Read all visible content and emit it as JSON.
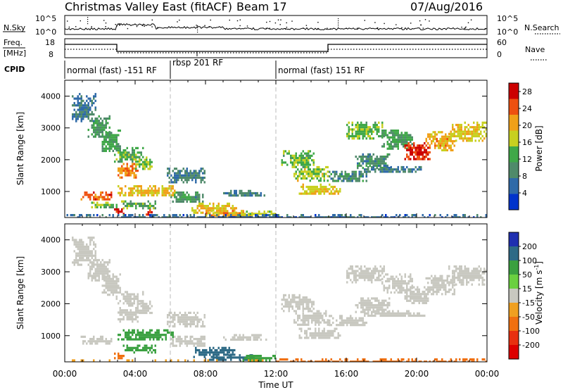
{
  "header": {
    "title": "Christmas Valley East (fitACF)",
    "beam": "Beam 17",
    "date": "07/Aug/2016"
  },
  "status_panels": {
    "nsky_label": "N.Sky",
    "nsearch_label": "N.Search",
    "nsky_ticks": [
      "10^5",
      "10^0"
    ],
    "nsearch_ticks": [
      "10^5",
      "10^0"
    ],
    "freq_label_line1": "Freq.",
    "freq_label_line2": "[MHz]",
    "freq_ticks": [
      "18",
      "8"
    ],
    "nave_label": "Nave",
    "nave_ticks": [
      "60",
      "0"
    ],
    "cpid_label": "CPID",
    "cpid_segments": [
      {
        "text": "normal (fast) -151 RF",
        "start": 0,
        "end": 6
      },
      {
        "text": "rbsp 201 RF",
        "start": 6,
        "end": 12
      },
      {
        "text": "normal (fast) 151 RF",
        "start": 12,
        "end": 24
      }
    ]
  },
  "chart_data": [
    {
      "type": "heatmap",
      "title": "Power",
      "xlabel": "",
      "ylabel": "Slant Range [km]",
      "xlim": [
        0,
        24
      ],
      "ylim": [
        180,
        4500
      ],
      "yticks": [
        1000,
        2000,
        3000,
        4000
      ],
      "colorbar": {
        "label": "Power [dB]",
        "range": [
          0,
          30
        ],
        "ticks": [
          "4",
          "8",
          "12",
          "16",
          "20",
          "24",
          "28"
        ],
        "tick_values": [
          4,
          8,
          12,
          16,
          20,
          24,
          28
        ],
        "colors": [
          "#0033cc",
          "#2f6aa8",
          "#4f8a6a",
          "#3fa848",
          "#c8d020",
          "#f0a018",
          "#ee5010",
          "#cc0000"
        ]
      },
      "regions": [
        {
          "t": [
            0.4,
            1.8
          ],
          "r": [
            3200,
            4100
          ],
          "v": 7
        },
        {
          "t": [
            1.3,
            2.6
          ],
          "r": [
            2700,
            3400
          ],
          "v": 11
        },
        {
          "t": [
            2.1,
            3.2
          ],
          "r": [
            2300,
            2950
          ],
          "v": 12
        },
        {
          "t": [
            2.8,
            4.5
          ],
          "r": [
            1950,
            2400
          ],
          "v": 13
        },
        {
          "t": [
            3.0,
            4.2
          ],
          "r": [
            1450,
            1900
          ],
          "v": 22
        },
        {
          "t": [
            4.0,
            5.0
          ],
          "r": [
            1700,
            2100
          ],
          "v": 15
        },
        {
          "t": [
            0.9,
            2.7
          ],
          "r": [
            750,
            1000
          ],
          "v": 24
        },
        {
          "t": [
            1.5,
            3.0
          ],
          "r": [
            500,
            680
          ],
          "v": 14
        },
        {
          "t": [
            3.0,
            6.2
          ],
          "r": [
            850,
            1200
          ],
          "v": 19
        },
        {
          "t": [
            3.2,
            5.2
          ],
          "r": [
            500,
            720
          ],
          "v": 13
        },
        {
          "t": [
            2.8,
            3.4
          ],
          "r": [
            300,
            470
          ],
          "v": 28
        },
        {
          "t": [
            4.6,
            5.0
          ],
          "r": [
            280,
            450
          ],
          "v": 27
        },
        {
          "t": [
            5.8,
            8.0
          ],
          "r": [
            1300,
            1750
          ],
          "v": 8
        },
        {
          "t": [
            6.0,
            8.0
          ],
          "r": [
            650,
            1000
          ],
          "v": 10
        },
        {
          "t": [
            7.2,
            9.8
          ],
          "r": [
            350,
            650
          ],
          "v": 18
        },
        {
          "t": [
            8.0,
            10.8
          ],
          "r": [
            230,
            420
          ],
          "v": 20
        },
        {
          "t": [
            9.0,
            11.5
          ],
          "r": [
            850,
            1050
          ],
          "v": 8
        },
        {
          "t": [
            10.0,
            12.0
          ],
          "r": [
            230,
            400
          ],
          "v": 16
        },
        {
          "t": [
            12.3,
            14.2
          ],
          "r": [
            1800,
            2300
          ],
          "v": 14
        },
        {
          "t": [
            13.0,
            15.0
          ],
          "r": [
            1350,
            1800
          ],
          "v": 16
        },
        {
          "t": [
            13.3,
            15.7
          ],
          "r": [
            900,
            1250
          ],
          "v": 18
        },
        {
          "t": [
            15.0,
            17.2
          ],
          "r": [
            1300,
            1650
          ],
          "v": 9
        },
        {
          "t": [
            16.5,
            18.5
          ],
          "r": [
            1750,
            2200
          ],
          "v": 9
        },
        {
          "t": [
            16.0,
            18.2
          ],
          "r": [
            2700,
            3200
          ],
          "v": 14
        },
        {
          "t": [
            18.0,
            19.8
          ],
          "r": [
            2350,
            2950
          ],
          "v": 12
        },
        {
          "t": [
            19.3,
            20.8
          ],
          "r": [
            2000,
            2550
          ],
          "v": 27
        },
        {
          "t": [
            20.5,
            22.2
          ],
          "r": [
            2300,
            2900
          ],
          "v": 20
        },
        {
          "t": [
            21.8,
            24.0
          ],
          "r": [
            2600,
            3200
          ],
          "v": 18
        },
        {
          "t": [
            17.0,
            20.5
          ],
          "r": [
            1600,
            1800
          ],
          "v": 8
        },
        {
          "t": [
            0.0,
            24.0
          ],
          "r": [
            190,
            290
          ],
          "v": 6
        }
      ]
    },
    {
      "type": "heatmap",
      "title": "Velocity",
      "xlabel": "Time UT",
      "ylabel": "Slant Range [km]",
      "xlim": [
        0,
        24
      ],
      "ylim": [
        180,
        4500
      ],
      "yticks": [
        1000,
        2000,
        3000,
        4000
      ],
      "xticks": [
        "00:00",
        "04:00",
        "08:00",
        "12:00",
        "16:00",
        "20:00",
        "00:00"
      ],
      "colorbar": {
        "label": "Velocity [m s^-1]",
        "ticks": [
          "200",
          "100",
          "50",
          "15",
          "-15",
          "-50",
          "-100",
          "-200"
        ],
        "colors": [
          "#1f2fb0",
          "#2e6a86",
          "#3aa040",
          "#6ad040",
          "#c8c8c0",
          "#f0a020",
          "#f07010",
          "#e83010",
          "#dd0000"
        ]
      },
      "regions": [
        {
          "t": [
            0.4,
            1.8
          ],
          "r": [
            3200,
            4100
          ],
          "v": 0
        },
        {
          "t": [
            1.3,
            2.6
          ],
          "r": [
            2700,
            3400
          ],
          "v": 5
        },
        {
          "t": [
            2.1,
            3.2
          ],
          "r": [
            2300,
            2950
          ],
          "v": 0
        },
        {
          "t": [
            2.8,
            4.5
          ],
          "r": [
            1950,
            2400
          ],
          "v": -10
        },
        {
          "t": [
            3.0,
            4.2
          ],
          "r": [
            1450,
            1900
          ],
          "v": -5
        },
        {
          "t": [
            4.0,
            5.0
          ],
          "r": [
            1700,
            2100
          ],
          "v": 0
        },
        {
          "t": [
            0.9,
            2.7
          ],
          "r": [
            750,
            1000
          ],
          "v": 0
        },
        {
          "t": [
            3.0,
            6.2
          ],
          "r": [
            850,
            1200
          ],
          "v": 40
        },
        {
          "t": [
            3.2,
            5.2
          ],
          "r": [
            500,
            720
          ],
          "v": 45
        },
        {
          "t": [
            2.8,
            3.4
          ],
          "r": [
            300,
            470
          ],
          "v": -60
        },
        {
          "t": [
            5.8,
            8.0
          ],
          "r": [
            1300,
            1750
          ],
          "v": 0
        },
        {
          "t": [
            6.0,
            8.0
          ],
          "r": [
            650,
            1000
          ],
          "v": 0
        },
        {
          "t": [
            7.2,
            9.8
          ],
          "r": [
            350,
            650
          ],
          "v": 80
        },
        {
          "t": [
            8.0,
            10.8
          ],
          "r": [
            230,
            420
          ],
          "v": 120
        },
        {
          "t": [
            9.0,
            11.5
          ],
          "r": [
            850,
            1050
          ],
          "v": 0
        },
        {
          "t": [
            10.0,
            12.0
          ],
          "r": [
            230,
            400
          ],
          "v": 60
        },
        {
          "t": [
            12.3,
            14.2
          ],
          "r": [
            1800,
            2300
          ],
          "v": 0
        },
        {
          "t": [
            13.0,
            15.0
          ],
          "r": [
            1350,
            1800
          ],
          "v": 5
        },
        {
          "t": [
            13.3,
            15.7
          ],
          "r": [
            900,
            1250
          ],
          "v": 0
        },
        {
          "t": [
            15.0,
            17.2
          ],
          "r": [
            1300,
            1650
          ],
          "v": 0
        },
        {
          "t": [
            16.5,
            18.5
          ],
          "r": [
            1750,
            2200
          ],
          "v": 0
        },
        {
          "t": [
            16.0,
            18.2
          ],
          "r": [
            2700,
            3200
          ],
          "v": 0
        },
        {
          "t": [
            18.0,
            19.8
          ],
          "r": [
            2350,
            2950
          ],
          "v": 0
        },
        {
          "t": [
            19.3,
            20.8
          ],
          "r": [
            2000,
            2550
          ],
          "v": 0
        },
        {
          "t": [
            20.5,
            22.2
          ],
          "r": [
            2300,
            2900
          ],
          "v": 0
        },
        {
          "t": [
            21.8,
            24.0
          ],
          "r": [
            2600,
            3200
          ],
          "v": 0
        },
        {
          "t": [
            17.0,
            20.5
          ],
          "r": [
            1600,
            1800
          ],
          "v": 0
        },
        {
          "t": [
            12.0,
            24.0
          ],
          "r": [
            190,
            290
          ],
          "v": -40
        },
        {
          "t": [
            0.0,
            12.0
          ],
          "r": [
            190,
            260
          ],
          "v": -20
        }
      ]
    }
  ]
}
